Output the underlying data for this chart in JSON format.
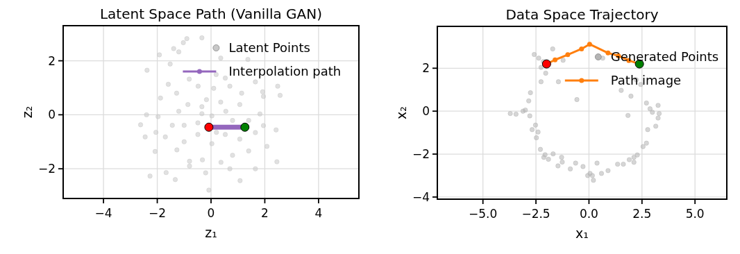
{
  "chart_data": [
    {
      "type": "scatter",
      "title": "Latent Space Path (Vanilla GAN)",
      "xlabel": "z₁",
      "ylabel": "z₂",
      "xlim": [
        -5.5,
        5.5
      ],
      "ylim": [
        -3.1,
        3.3
      ],
      "xticks": [
        -4,
        -2,
        0,
        2,
        4
      ],
      "yticks": [
        -2,
        0,
        2
      ],
      "grid": true,
      "legend": "top right",
      "series": [
        {
          "name": "Latent Points",
          "color": "#c8c8c8",
          "x": [
            -0.9,
            -0.34,
            -1.03,
            -1.39,
            -1.2,
            -1.92,
            -2.38,
            -1.52,
            1.37,
            0.36,
            2.48,
            2.57,
            1.92,
            1.95,
            -2.62,
            -2.45,
            2.42,
            2.45,
            -2.27,
            -0.08,
            -1.33,
            1.08,
            1.65,
            -1.67,
            -2.08,
            -2.05,
            -2.4,
            -1.97,
            -1.88,
            -1.59,
            -0.81,
            -0.48,
            0.19,
            0.7,
            1.14,
            1.65,
            1.82,
            1.95,
            1.65,
            2.08,
            1.4,
            0.8,
            0.37,
            -0.32,
            -0.8,
            -1.27,
            -1.0,
            -1.7,
            -1.44,
            -1.0,
            -0.49,
            0.03,
            0.55,
            1.07,
            -0.34,
            -0.86,
            -1.2,
            -0.17,
            0.36,
            0.8,
            0.53,
            0.03,
            -0.49,
            1.07,
            1.4,
            0.7,
            -0.2,
            -0.8,
            0.53,
            -1.28,
            0.1,
            -0.34,
            0.2
          ],
          "values": [
            2.82,
            2.85,
            2.67,
            2.45,
            2.33,
            2.22,
            1.65,
            1.88,
            2.05,
            2.1,
            1.06,
            0.72,
            0.85,
            0.68,
            -0.37,
            -0.82,
            -0.56,
            -1.74,
            -2.27,
            -2.79,
            -2.4,
            -2.44,
            -2.0,
            -2.14,
            -1.36,
            -0.65,
            0.0,
            -0.07,
            0.62,
            1.13,
            1.32,
            1.06,
            1.49,
            1.06,
            0.8,
            1.22,
            0.03,
            -0.4,
            -0.66,
            -1.17,
            -1.34,
            -1.5,
            -1.76,
            -1.67,
            -1.72,
            -1.3,
            -1.0,
            -0.82,
            -0.39,
            -0.39,
            -0.3,
            -0.04,
            0.13,
            0.38,
            0.3,
            0.38,
            0.13,
            0.56,
            0.47,
            -0.21,
            -0.73,
            -1.07,
            -0.73,
            -0.9,
            -0.21,
            -2.0,
            -2.15,
            -1.9,
            1.36,
            0.8,
            0.98,
            0.04,
            -0.65
          ]
        },
        {
          "name": "Interpolation path",
          "type": "line",
          "color": "#9467bd",
          "marker": "circle",
          "x": [
            -0.08,
            1.26
          ],
          "values": [
            -0.46,
            -0.46
          ]
        },
        {
          "color": "#ff0000",
          "x": [
            -0.08
          ],
          "values": [
            -0.46
          ]
        },
        {
          "color": "#008000",
          "x": [
            1.26
          ],
          "values": [
            -0.46
          ]
        }
      ]
    },
    {
      "type": "scatter",
      "title": "Data Space Trajectory",
      "xlabel": "x₁",
      "ylabel": "x₂",
      "xlim": [
        -7.15,
        6.5
      ],
      "ylim": [
        -4.1,
        3.95
      ],
      "xticks": [
        {
          "value": -5,
          "label": "−5.0"
        },
        {
          "value": -2.5,
          "label": "−2.5"
        },
        {
          "value": 0,
          "label": "0.0"
        },
        {
          "value": 2.5,
          "label": "2.5"
        },
        {
          "value": 5,
          "label": "5.0"
        }
      ],
      "yticks": [
        -4,
        -2,
        0,
        2
      ],
      "grid": true,
      "legend": "top right",
      "series": [
        {
          "name": "Generated Points",
          "color": "#b4b4b4",
          "x": [
            -2.58,
            -2.37,
            -2.15,
            -2.26,
            -2.04,
            -2.26,
            -1.71,
            -1.44,
            -1.22,
            -2.76,
            -2.84,
            -3.0,
            -3.11,
            -3.71,
            -3.44,
            -2.79,
            -2.52,
            -2.68,
            -2.4,
            -2.48,
            -2.29,
            -2.07,
            -2.13,
            -1.91,
            -1.69,
            -1.29,
            -1.26,
            -1.46,
            -0.88,
            -0.63,
            -0.28,
            0.05,
            0.16,
            -0.06,
            0.21,
            0.38,
            0.59,
            0.9,
            1.35,
            1.62,
            1.9,
            2.12,
            2.28,
            2.12,
            2.55,
            2.71,
            2.77,
            3.15,
            3.26,
            3.31,
            2.99,
            2.88,
            3.26,
            2.71,
            1.84,
            1.98,
            1.52,
            2.44,
            2.23,
            0.65,
            -0.57
          ],
          "values": [
            2.64,
            2.47,
            2.31,
            2.04,
            1.77,
            1.37,
            2.9,
            1.37,
            2.37,
            0.86,
            0.48,
            0.05,
            0.0,
            -0.11,
            -0.14,
            -0.22,
            -0.65,
            -0.86,
            -0.97,
            -1.24,
            -1.78,
            -2.03,
            -2.15,
            -2.24,
            -1.99,
            -2.15,
            -2.37,
            -2.55,
            -2.69,
            -2.42,
            -2.58,
            -2.9,
            -3.0,
            -3.0,
            -3.22,
            -2.42,
            -2.9,
            -2.77,
            -2.47,
            -2.47,
            -2.26,
            -2.15,
            -2.04,
            -2.38,
            -1.65,
            -1.49,
            -0.86,
            -0.7,
            -0.32,
            -0.11,
            -0.05,
            0.11,
            0.27,
            0.38,
            -0.2,
            0.7,
            0.97,
            1.24,
            1.46,
            2.47,
            0.54
          ]
        },
        {
          "name": "Path image",
          "type": "line",
          "color": "#ff7f0e",
          "marker": "circle",
          "x": [
            -2.0,
            -1.6,
            -1.0,
            -0.35,
            0.03,
            0.9,
            1.39,
            1.88,
            2.38
          ],
          "values": [
            2.2,
            2.39,
            2.63,
            2.9,
            3.12,
            2.71,
            2.58,
            2.36,
            2.2
          ]
        },
        {
          "color": "#ff0000",
          "x": [
            -2.0
          ],
          "values": [
            2.2
          ]
        },
        {
          "color": "#008000",
          "x": [
            2.38
          ],
          "values": [
            2.2
          ]
        }
      ]
    }
  ]
}
